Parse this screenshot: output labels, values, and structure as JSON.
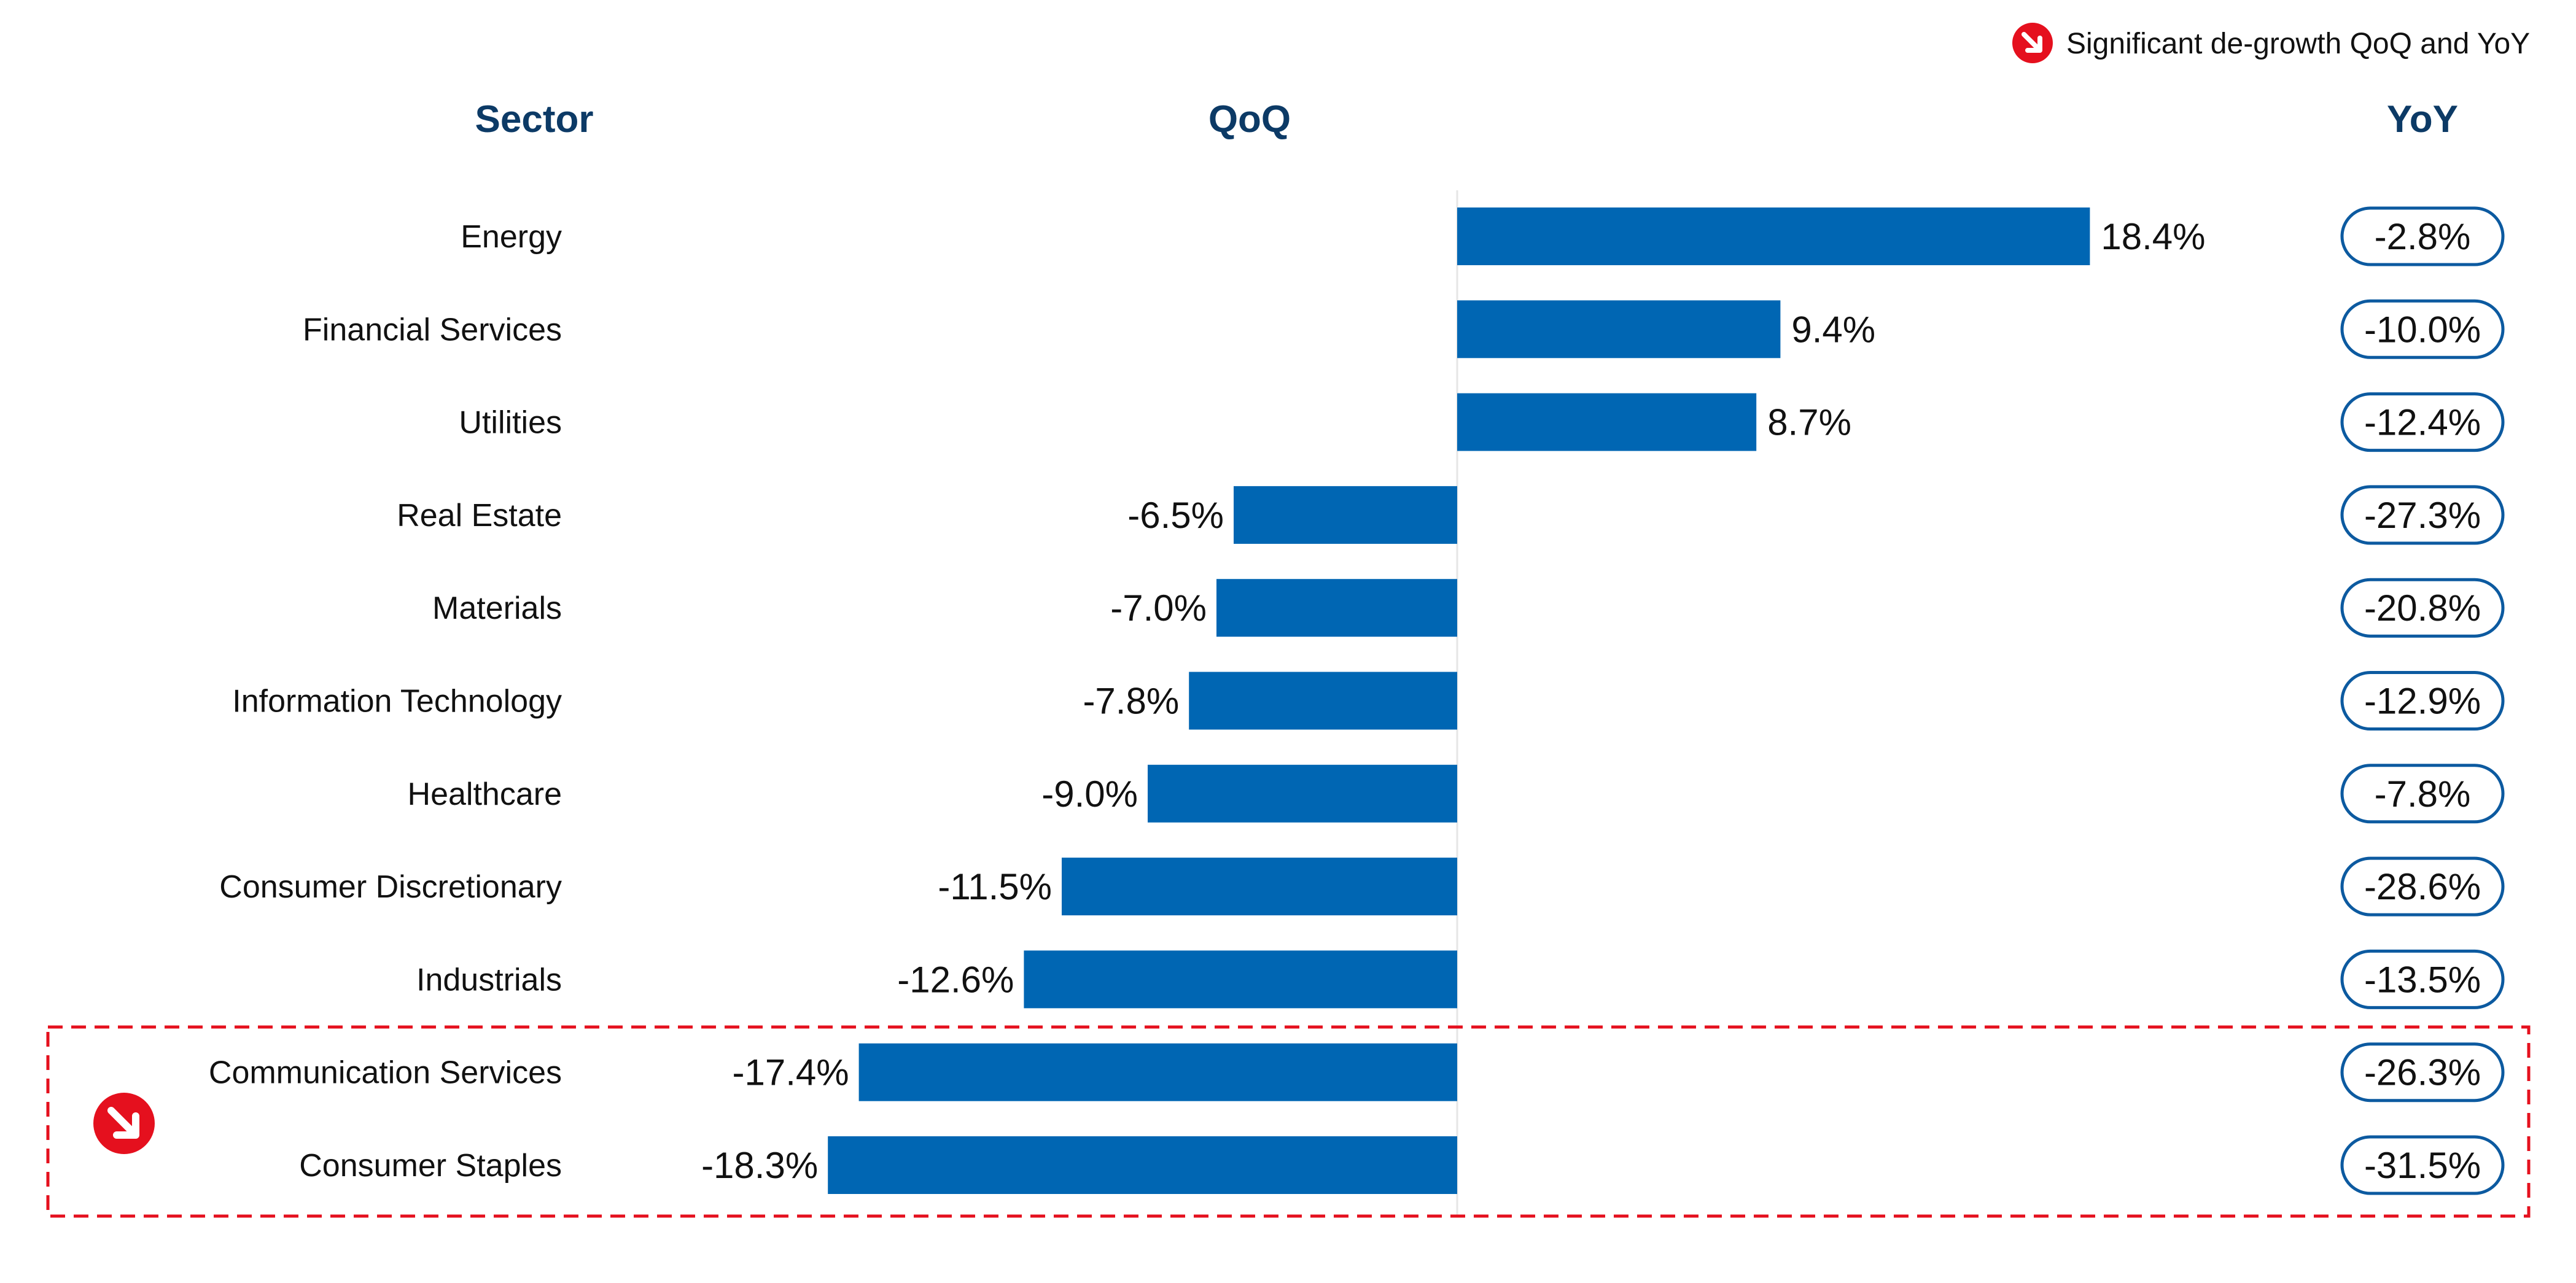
{
  "legend": {
    "icon": "down-right-arrow-icon",
    "label": "Significant de-growth QoQ and YoY"
  },
  "headers": {
    "sector": "Sector",
    "qoq": "QoQ",
    "yoy": "YoY"
  },
  "colors": {
    "bar": "#0066b3",
    "header": "#0c3a66",
    "pill_border": "#0c5aa0",
    "highlight": "#e5101e"
  },
  "highlight_group": {
    "sectors": [
      "Communication Services",
      "Consumer Staples"
    ],
    "icon": "down-right-arrow-icon"
  },
  "chart_data": {
    "type": "bar",
    "orientation": "horizontal",
    "categories": [
      "Energy",
      "Financial Services",
      "Utilities",
      "Real Estate",
      "Materials",
      "Information Technology",
      "Healthcare",
      "Consumer Discretionary",
      "Industrials",
      "Communication Services",
      "Consumer Staples"
    ],
    "series": [
      {
        "name": "QoQ",
        "values": [
          18.4,
          9.4,
          8.7,
          -6.5,
          -7.0,
          -7.8,
          -9.0,
          -11.5,
          -12.6,
          -17.4,
          -18.3
        ],
        "labels": [
          "18.4%",
          "9.4%",
          "8.7%",
          "-6.5%",
          "-7.0%",
          "-7.8%",
          "-9.0%",
          "-11.5%",
          "-12.6%",
          "-17.4%",
          "-18.3%"
        ]
      },
      {
        "name": "YoY",
        "values": [
          -2.8,
          -10.0,
          -12.4,
          -27.3,
          -20.8,
          -12.9,
          -7.8,
          -28.6,
          -13.5,
          -26.3,
          -31.5
        ],
        "labels": [
          "-2.8%",
          "-10.0%",
          "-12.4%",
          "-27.3%",
          "-20.8%",
          "-12.9%",
          "-7.8%",
          "-28.6%",
          "-13.5%",
          "-26.3%",
          "-31.5%"
        ]
      }
    ],
    "grid": false
  }
}
